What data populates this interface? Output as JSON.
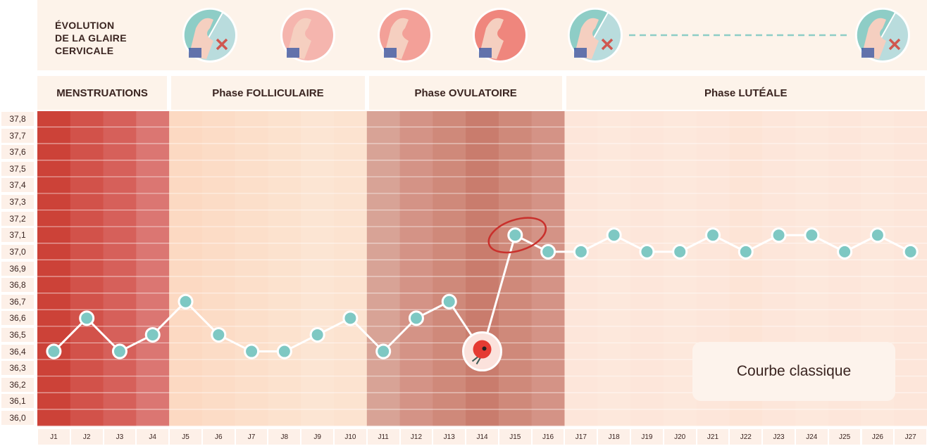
{
  "glaire": {
    "title": "ÉVOLUTION\nDE LA GLAIRE\nCERVICALE",
    "icons": [
      {
        "name": "dry-mucus-icon",
        "type": "dry"
      },
      {
        "name": "creamy-mucus-icon",
        "type": "wet",
        "color": "#f5b5ae"
      },
      {
        "name": "wet-mucus-icon",
        "type": "wet",
        "color": "#f3a098"
      },
      {
        "name": "egg-white-mucus-icon",
        "type": "wet",
        "color": "#ef867d"
      },
      {
        "name": "dry-mucus-icon",
        "type": "dry"
      },
      {
        "name": "dry-mucus-icon",
        "type": "dry"
      }
    ],
    "dash_color": "#8ecdc6"
  },
  "phases": [
    {
      "label": "MENSTRUATIONS",
      "start": 1,
      "end": 4
    },
    {
      "label": "Phase FOLLICULAIRE",
      "start": 5,
      "end": 10
    },
    {
      "label": "Phase OVULATOIRE",
      "start": 11,
      "end": 16
    },
    {
      "label": "Phase LUTÉALE",
      "start": 17,
      "end": 27
    }
  ],
  "chart_data": {
    "type": "line",
    "categories": [
      "J1",
      "J2",
      "J3",
      "J4",
      "J5",
      "J6",
      "J7",
      "J8",
      "J9",
      "J10",
      "J11",
      "J12",
      "J13",
      "J14",
      "J15",
      "J16",
      "J17",
      "J18",
      "J19",
      "J20",
      "J21",
      "J22",
      "J23",
      "J24",
      "J25",
      "J26",
      "J27"
    ],
    "values": [
      36.4,
      36.6,
      36.4,
      36.5,
      36.7,
      36.5,
      36.4,
      36.4,
      36.5,
      36.6,
      36.4,
      36.6,
      36.7,
      36.4,
      37.1,
      37.0,
      37.0,
      37.1,
      37.0,
      37.0,
      37.1,
      37.0,
      37.1,
      37.1,
      37.0,
      37.1,
      37.0
    ],
    "ylim": [
      36.0,
      37.8
    ],
    "yticks": [
      "37,8",
      "37,7",
      "37,6",
      "37,5",
      "37,4",
      "37,3",
      "37,2",
      "37,1",
      "37,0",
      "36,9",
      "36,8",
      "36,7",
      "36,6",
      "36,5",
      "36,4",
      "36,3",
      "36,2",
      "36,1",
      "36,0"
    ],
    "grid": true,
    "ovulation_day": "J14",
    "circled_point": "J15",
    "marker_color": "#7ec8c3",
    "column_colors": [
      "#cc4238",
      "#d2524a",
      "#d6605a",
      "#db7672",
      "#fcd9c2",
      "#fcdcc6",
      "#fcdfca",
      "#fce2ce",
      "#fce5d3",
      "#fce3d0",
      "#d8a396",
      "#d49386",
      "#cf897a",
      "#c97c6d",
      "#cf897a",
      "#d49386",
      "#fde6da",
      "#fde8dc",
      "#fde6da",
      "#fde8dc",
      "#fde6da",
      "#fde4d6",
      "#fde6da",
      "#fde8dc",
      "#fde6da",
      "#fde8dc",
      "#fde6da"
    ],
    "legend": "Courbe classique"
  }
}
